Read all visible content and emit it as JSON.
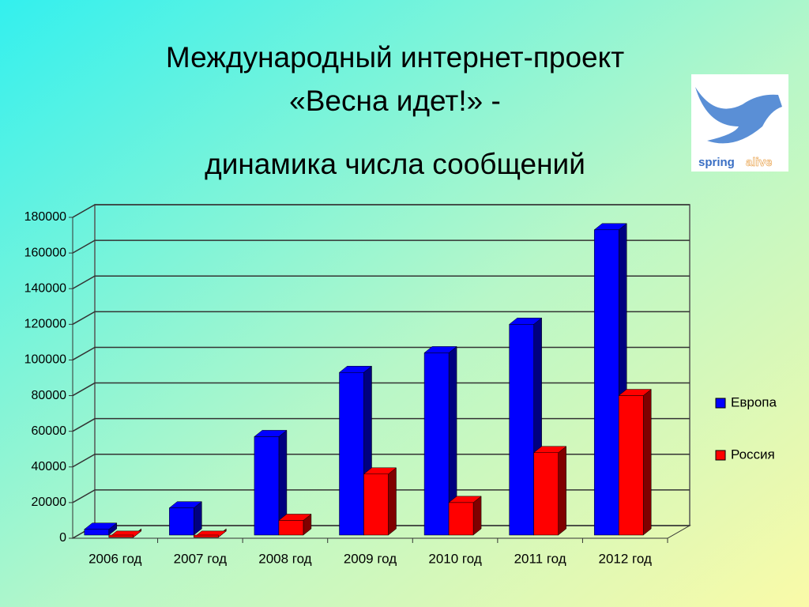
{
  "chart_data": {
    "type": "bar3d",
    "title": [
      "Международный интернет-проект",
      "«Весна идет!» -",
      "динамика числа сообщений"
    ],
    "categories": [
      "2006 год",
      "2007 год",
      "2008 год",
      "2009 год",
      "2010 год",
      "2011 год",
      "2012 год"
    ],
    "series": [
      {
        "name": "Европа",
        "color": "#0000ff",
        "values": [
          5000,
          17000,
          57000,
          93000,
          104000,
          120000,
          173000
        ]
      },
      {
        "name": "Россия",
        "color": "#ff0000",
        "values": [
          500,
          500,
          10000,
          36000,
          20000,
          48000,
          80000
        ]
      }
    ],
    "ylim": [
      0,
      180000
    ],
    "yticks": [
      0,
      20000,
      40000,
      60000,
      80000,
      100000,
      120000,
      140000,
      160000,
      180000
    ],
    "grid": true,
    "legend": "right"
  },
  "logo": {
    "text": [
      "spring",
      "alive"
    ]
  }
}
